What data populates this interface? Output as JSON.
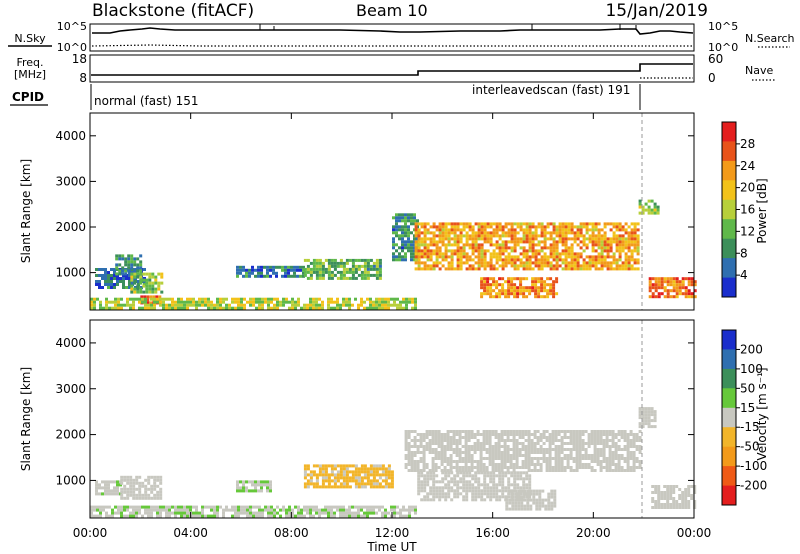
{
  "header": {
    "station": "Blackstone (fitACF)",
    "beam": "Beam 10",
    "date": "15/Jan/2019"
  },
  "noise_panel": {
    "left_label": "N.Sky",
    "right_label": "N.Search",
    "left_ticks": [
      "10^5",
      "10^0"
    ],
    "right_ticks": [
      "10^5",
      "10^0"
    ]
  },
  "freq_panel": {
    "left_label_1": "Freq.",
    "left_label_2": "[MHz]",
    "right_label": "Nave",
    "left_ticks": [
      "18",
      "8"
    ],
    "right_ticks": [
      "60",
      "0"
    ]
  },
  "cpid": {
    "label": "CPID",
    "modes": [
      {
        "name": "normal (fast) 151",
        "start_hour": 0,
        "end_hour": 21.9
      },
      {
        "name": "interleavedscan (fast) 191",
        "start_hour": 12.9,
        "end_hour": 21.9
      }
    ]
  },
  "colors": {
    "power": [
      "#1a2ecc",
      "#2f6fb0",
      "#3c8f5a",
      "#5fb84a",
      "#b7cf3a",
      "#f2c21a",
      "#f39a1a",
      "#e8531a",
      "#e41e1e"
    ],
    "velocity": [
      "#e41e1e",
      "#ef5a16",
      "#f39a1a",
      "#f2b52a",
      "#c8c8c0",
      "#66c83a",
      "#3c8f5a",
      "#2f6fb0",
      "#1a2ecc"
    ]
  },
  "chart_data": [
    {
      "type": "heatmap",
      "title": "Power",
      "colorbar_label": "Power [dB]",
      "colorbar_ticks": [
        "4",
        "8",
        "12",
        "16",
        "20",
        "24",
        "28"
      ],
      "ylabel": "Slant Range [km]",
      "yticks": [
        "1000",
        "2000",
        "3000",
        "4000"
      ],
      "xlim": [
        0,
        24
      ],
      "ylim": [
        180,
        4500
      ],
      "regions": [
        {
          "x": [
            0.2,
            2.2
          ],
          "y": [
            700,
            1100
          ],
          "value": 6
        },
        {
          "x": [
            1.0,
            2.0
          ],
          "y": [
            1000,
            1400
          ],
          "value": 9
        },
        {
          "x": [
            1.6,
            2.8
          ],
          "y": [
            600,
            1000
          ],
          "value": 14
        },
        {
          "x": [
            2.0,
            2.8
          ],
          "y": [
            350,
            500
          ],
          "value": 26
        },
        {
          "x": [
            0,
            12.9
          ],
          "y": [
            200,
            450
          ],
          "value": 16
        },
        {
          "x": [
            5.8,
            8.5
          ],
          "y": [
            900,
            1150
          ],
          "value": 7
        },
        {
          "x": [
            8.5,
            11.5
          ],
          "y": [
            900,
            1300
          ],
          "value": 12
        },
        {
          "x": [
            12.0,
            13.0
          ],
          "y": [
            1300,
            2300
          ],
          "value": 8
        },
        {
          "x": [
            12.9,
            21.8
          ],
          "y": [
            1100,
            2100
          ],
          "value": 22
        },
        {
          "x": [
            15.5,
            18.5
          ],
          "y": [
            500,
            900
          ],
          "value": 24
        },
        {
          "x": [
            21.8,
            22.6
          ],
          "y": [
            2300,
            2600
          ],
          "value": 14
        },
        {
          "x": [
            22.2,
            24.0
          ],
          "y": [
            500,
            900
          ],
          "value": 25
        }
      ]
    },
    {
      "type": "heatmap",
      "title": "Velocity",
      "colorbar_label": "Velocity [m s⁻¹]",
      "colorbar_ticks": [
        "200",
        "100",
        "50",
        "15",
        "-15",
        "-50",
        "-100",
        "-200"
      ],
      "ylabel": "Slant Range [km]",
      "xlabel": "Time UT",
      "xticks": [
        "00:00",
        "04:00",
        "08:00",
        "12:00",
        "16:00",
        "20:00",
        "00:00"
      ],
      "yticks": [
        "1000",
        "2000",
        "3000",
        "4000"
      ],
      "xlim": [
        0,
        24
      ],
      "ylim": [
        180,
        4500
      ],
      "regions": [
        {
          "x": [
            0.2,
            1.2
          ],
          "y": [
            700,
            1000
          ],
          "value": 20
        },
        {
          "x": [
            1.2,
            2.8
          ],
          "y": [
            600,
            1100
          ],
          "value": 0
        },
        {
          "x": [
            0,
            12.9
          ],
          "y": [
            200,
            450
          ],
          "value": 20
        },
        {
          "x": [
            5.8,
            7.2
          ],
          "y": [
            800,
            1000
          ],
          "value": 20
        },
        {
          "x": [
            8.5,
            12.0
          ],
          "y": [
            850,
            1350
          ],
          "value": -40
        },
        {
          "x": [
            12.5,
            21.8
          ],
          "y": [
            1200,
            2100
          ],
          "value": 0
        },
        {
          "x": [
            13.0,
            17.5
          ],
          "y": [
            600,
            1200
          ],
          "value": 0
        },
        {
          "x": [
            16.5,
            18.5
          ],
          "y": [
            400,
            800
          ],
          "value": 0
        },
        {
          "x": [
            21.8,
            22.5
          ],
          "y": [
            2200,
            2600
          ],
          "value": 0
        },
        {
          "x": [
            22.3,
            24.0
          ],
          "y": [
            400,
            900
          ],
          "value": 0
        }
      ]
    }
  ]
}
